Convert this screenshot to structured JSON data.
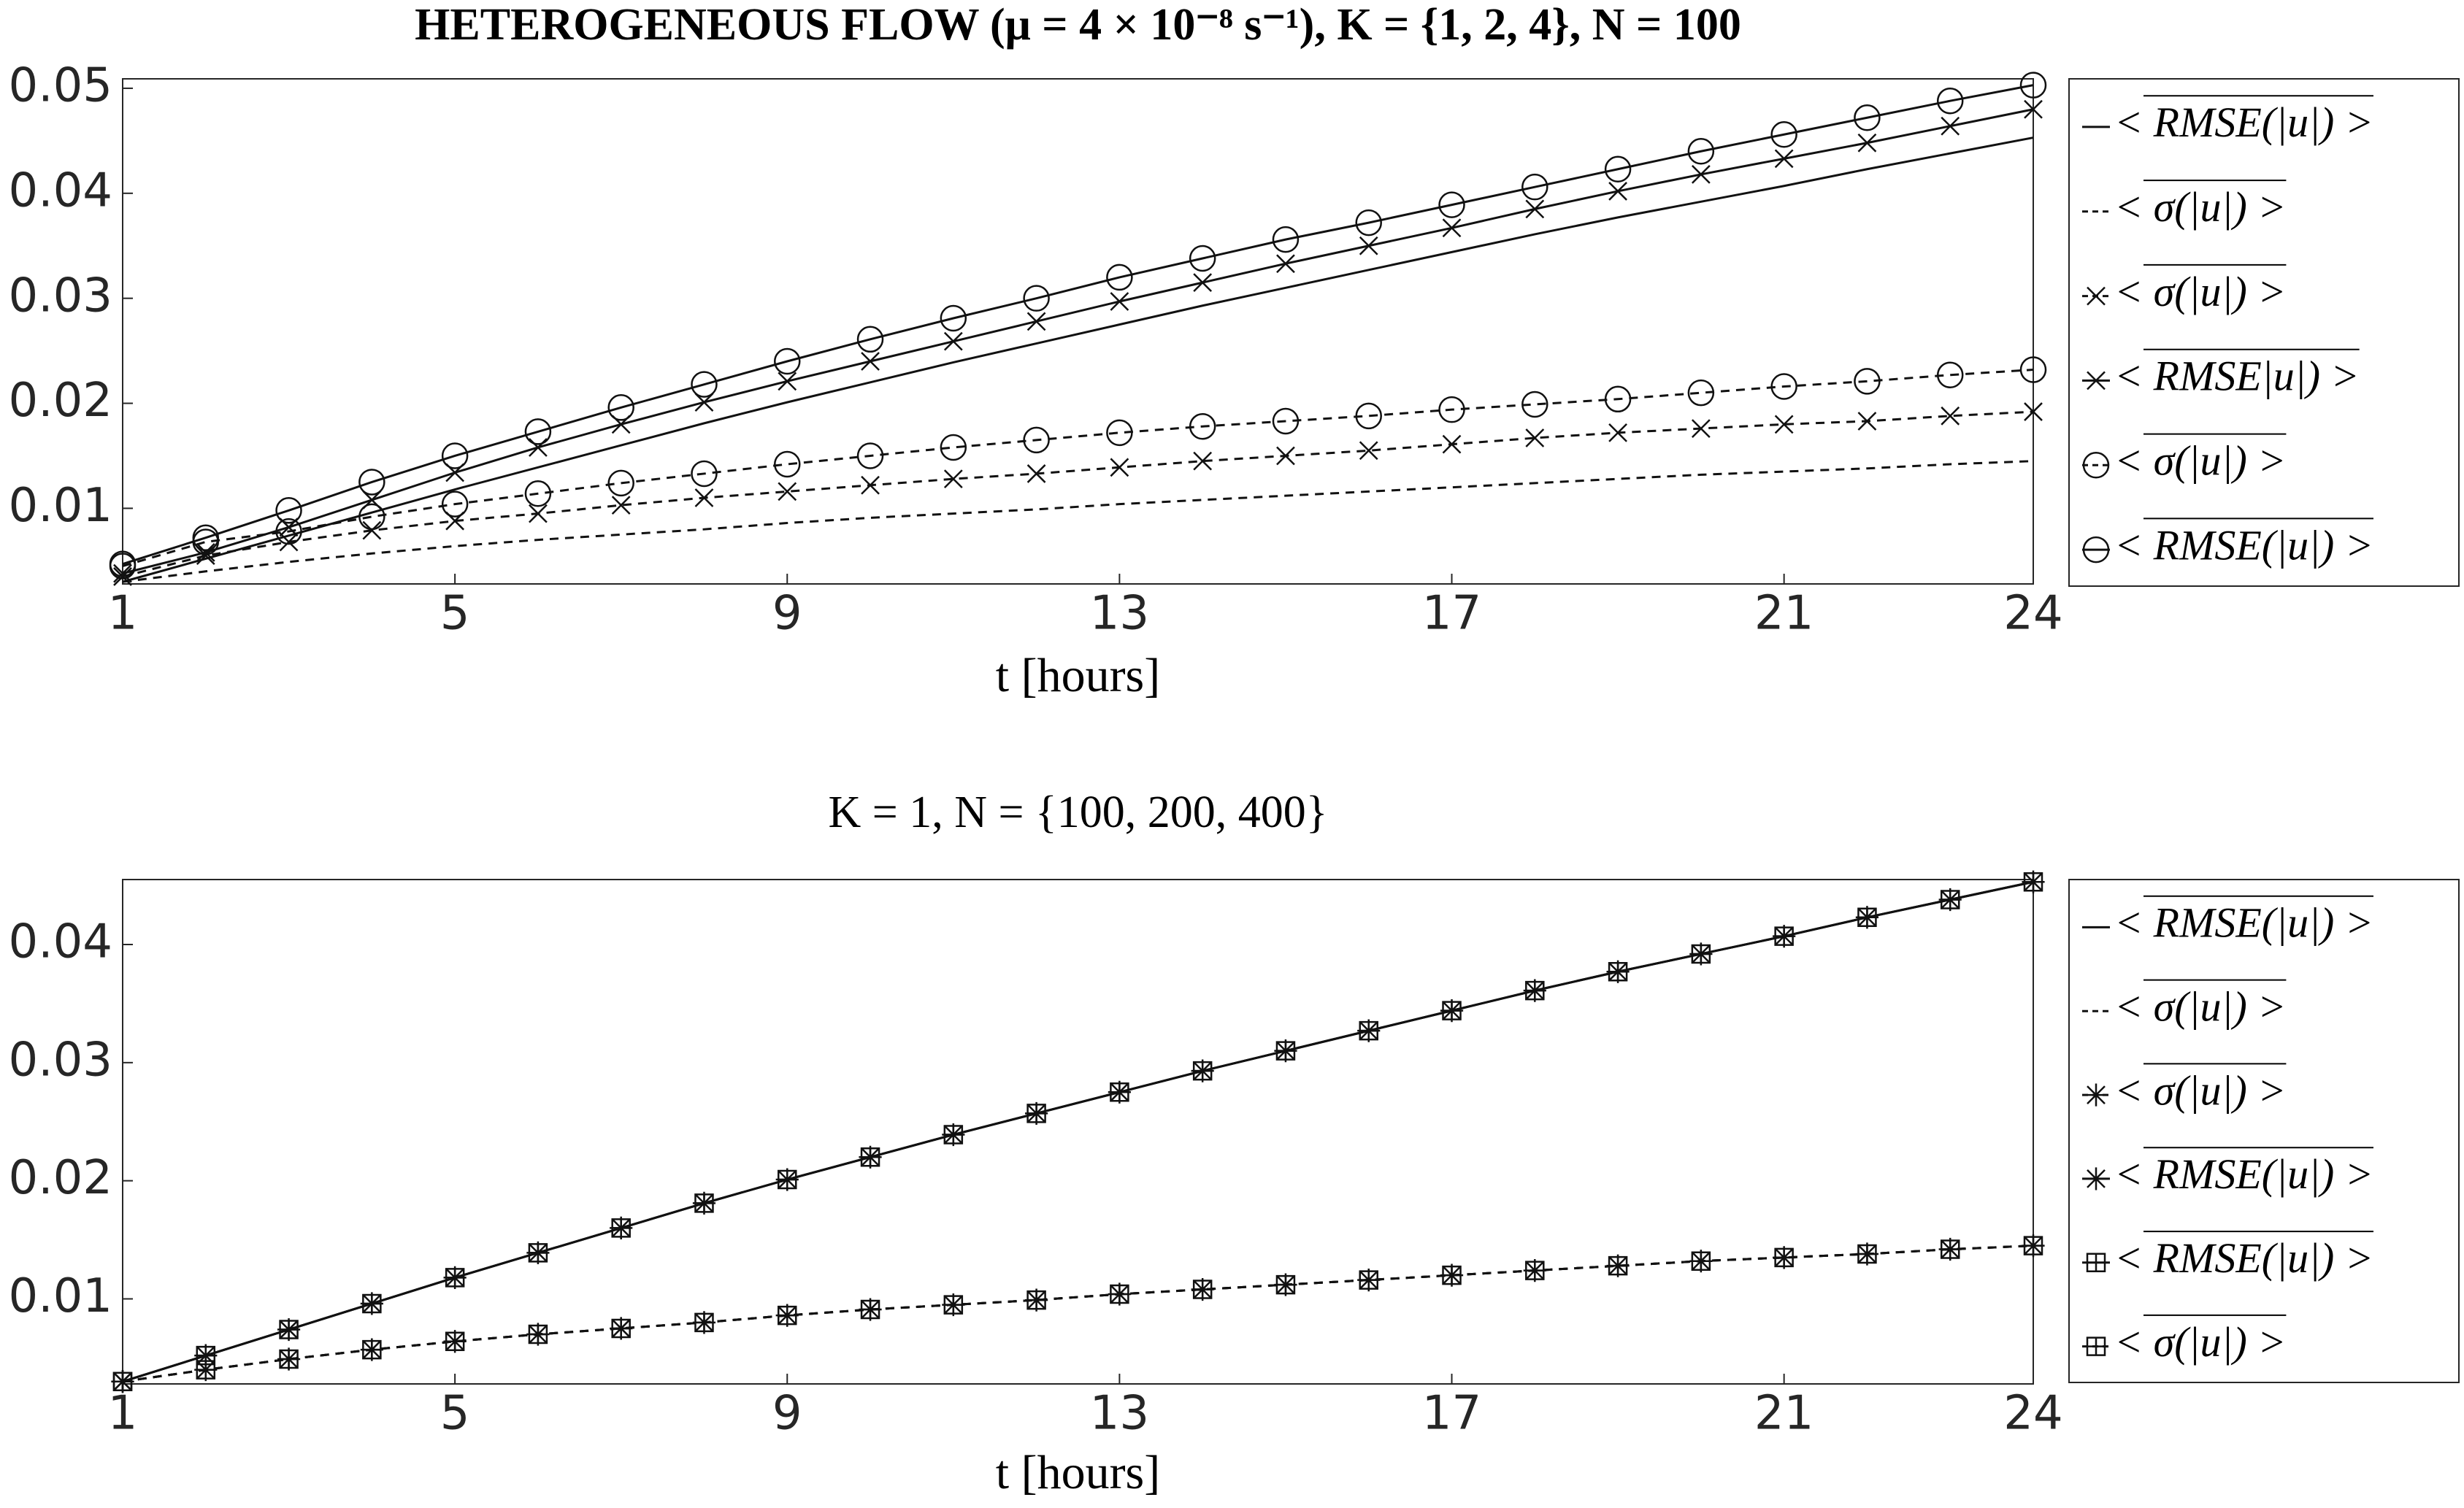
{
  "chart_data": [
    {
      "type": "line",
      "title": "HETEROGENEOUS FLOW (μ = 4 × 10⁻⁸ s⁻¹), K = {1, 2, 4}, N = 100",
      "xlabel": "t [hours]",
      "x": [
        1,
        2,
        3,
        4,
        5,
        6,
        7,
        8,
        9,
        10,
        11,
        12,
        13,
        14,
        15,
        16,
        17,
        18,
        19,
        20,
        21,
        22,
        23,
        24
      ],
      "xlim": [
        1,
        24
      ],
      "xticks": [
        1,
        5,
        9,
        13,
        17,
        21,
        24
      ],
      "ylim": [
        0.0028,
        0.0509
      ],
      "yticks": [
        0.01,
        0.02,
        0.03,
        0.04,
        0.05
      ],
      "series": [
        {
          "name": "< RMSE(|u|) >",
          "color": "#111111",
          "linestyle": "solid",
          "marker": "none",
          "values": [
            0.003,
            0.0052,
            0.0074,
            0.0096,
            0.0118,
            0.0139,
            0.016,
            0.0181,
            0.0201,
            0.022,
            0.0239,
            0.0257,
            0.0275,
            0.0293,
            0.031,
            0.0327,
            0.0344,
            0.0361,
            0.0377,
            0.0392,
            0.0407,
            0.0423,
            0.0438,
            0.0453
          ]
        },
        {
          "name": "< σ(|u|) >",
          "color": "#111111",
          "linestyle": "dashed",
          "marker": "none",
          "values": [
            0.003,
            0.004,
            0.0049,
            0.0057,
            0.0064,
            0.007,
            0.0075,
            0.008,
            0.0086,
            0.0091,
            0.0095,
            0.0099,
            0.0104,
            0.0108,
            0.0112,
            0.0116,
            0.012,
            0.0124,
            0.0128,
            0.0132,
            0.0135,
            0.0138,
            0.0142,
            0.0145
          ]
        },
        {
          "name": "< σ(|u|) >",
          "color": "#111111",
          "linestyle": "dashed",
          "marker": "x",
          "values": [
            0.0035,
            0.0055,
            0.0068,
            0.0079,
            0.0088,
            0.0095,
            0.0103,
            0.011,
            0.0116,
            0.0122,
            0.0128,
            0.0133,
            0.0139,
            0.0145,
            0.015,
            0.0155,
            0.0161,
            0.0167,
            0.0172,
            0.0176,
            0.018,
            0.0183,
            0.0188,
            0.0192
          ]
        },
        {
          "name": "< RMSE|u|) >",
          "color": "#111111",
          "linestyle": "solid",
          "marker": "x",
          "values": [
            0.0038,
            0.0058,
            0.0082,
            0.0108,
            0.0134,
            0.0158,
            0.018,
            0.0201,
            0.0221,
            0.024,
            0.0259,
            0.0278,
            0.0297,
            0.0315,
            0.0333,
            0.035,
            0.0367,
            0.0385,
            0.0402,
            0.0418,
            0.0433,
            0.0448,
            0.0464,
            0.048
          ]
        },
        {
          "name": "< σ(|u|) >",
          "color": "#111111",
          "linestyle": "dashed",
          "marker": "o",
          "values": [
            0.0045,
            0.0068,
            0.0078,
            0.0092,
            0.0104,
            0.0114,
            0.0124,
            0.0133,
            0.0142,
            0.015,
            0.0158,
            0.0165,
            0.0172,
            0.0178,
            0.0183,
            0.0188,
            0.0194,
            0.0199,
            0.0204,
            0.021,
            0.0216,
            0.0221,
            0.0227,
            0.0232
          ]
        },
        {
          "name": "< RMSE(|u|) >",
          "color": "#111111",
          "linestyle": "solid",
          "marker": "o",
          "values": [
            0.0047,
            0.0072,
            0.0098,
            0.0125,
            0.015,
            0.0173,
            0.0196,
            0.0218,
            0.024,
            0.0261,
            0.0281,
            0.03,
            0.032,
            0.0338,
            0.0356,
            0.0372,
            0.0389,
            0.0406,
            0.0423,
            0.044,
            0.0456,
            0.0472,
            0.0488,
            0.0503
          ]
        }
      ]
    },
    {
      "type": "line",
      "title": "K = 1, N = {100, 200, 400}",
      "xlabel": "t [hours]",
      "x": [
        1,
        2,
        3,
        4,
        5,
        6,
        7,
        8,
        9,
        10,
        11,
        12,
        13,
        14,
        15,
        16,
        17,
        18,
        19,
        20,
        21,
        22,
        23,
        24
      ],
      "xlim": [
        1,
        24
      ],
      "xticks": [
        1,
        5,
        9,
        13,
        17,
        21,
        24
      ],
      "ylim": [
        0.0028,
        0.0455
      ],
      "yticks": [
        0.01,
        0.02,
        0.03,
        0.04
      ],
      "series": [
        {
          "name": "< RMSE(|u|) >",
          "color": "#111111",
          "linestyle": "solid",
          "marker": "none",
          "values": [
            0.003,
            0.0052,
            0.0074,
            0.0096,
            0.0118,
            0.0139,
            0.016,
            0.0181,
            0.0201,
            0.022,
            0.0239,
            0.0257,
            0.0275,
            0.0293,
            0.031,
            0.0327,
            0.0344,
            0.0361,
            0.0377,
            0.0392,
            0.0407,
            0.0423,
            0.0438,
            0.0453
          ]
        },
        {
          "name": "< σ(|u|) >",
          "color": "#111111",
          "linestyle": "dashed",
          "marker": "none",
          "values": [
            0.003,
            0.004,
            0.0049,
            0.0057,
            0.0064,
            0.007,
            0.0075,
            0.008,
            0.0086,
            0.0091,
            0.0095,
            0.0099,
            0.0104,
            0.0108,
            0.0112,
            0.0116,
            0.012,
            0.0124,
            0.0128,
            0.0132,
            0.0135,
            0.0138,
            0.0142,
            0.0145
          ]
        },
        {
          "name": "< σ(|u|) >",
          "color": "#111111",
          "linestyle": "dashed",
          "marker": "*",
          "values": [
            0.003,
            0.004,
            0.0049,
            0.0057,
            0.0064,
            0.007,
            0.0075,
            0.008,
            0.0086,
            0.0091,
            0.0095,
            0.0099,
            0.0104,
            0.0108,
            0.0112,
            0.0116,
            0.012,
            0.0124,
            0.0128,
            0.0132,
            0.0135,
            0.0138,
            0.0142,
            0.0145
          ]
        },
        {
          "name": "< RMSE(|u|) >",
          "color": "#111111",
          "linestyle": "solid",
          "marker": "*",
          "values": [
            0.003,
            0.0052,
            0.0074,
            0.0096,
            0.0118,
            0.0139,
            0.016,
            0.0181,
            0.0201,
            0.022,
            0.0239,
            0.0257,
            0.0275,
            0.0293,
            0.031,
            0.0327,
            0.0344,
            0.0361,
            0.0377,
            0.0392,
            0.0407,
            0.0423,
            0.0438,
            0.0453
          ]
        },
        {
          "name": "< RMSE(|u|) >",
          "color": "#111111",
          "linestyle": "solid",
          "marker": "square",
          "values": [
            0.003,
            0.0052,
            0.0074,
            0.0096,
            0.0118,
            0.0139,
            0.016,
            0.0181,
            0.0201,
            0.022,
            0.0239,
            0.0257,
            0.0275,
            0.0293,
            0.031,
            0.0327,
            0.0344,
            0.0361,
            0.0377,
            0.0392,
            0.0407,
            0.0423,
            0.0438,
            0.0453
          ]
        },
        {
          "name": "< σ(|u|) >",
          "color": "#111111",
          "linestyle": "dashed",
          "marker": "square",
          "values": [
            0.003,
            0.004,
            0.0049,
            0.0057,
            0.0064,
            0.007,
            0.0075,
            0.008,
            0.0086,
            0.0091,
            0.0095,
            0.0099,
            0.0104,
            0.0108,
            0.0112,
            0.0116,
            0.012,
            0.0124,
            0.0128,
            0.0132,
            0.0135,
            0.0138,
            0.0142,
            0.0145
          ]
        }
      ]
    }
  ]
}
